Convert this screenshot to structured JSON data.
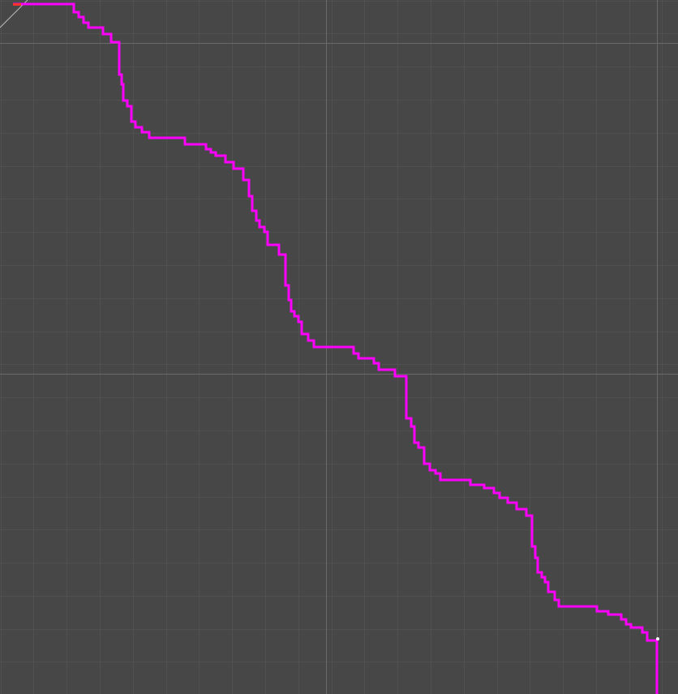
{
  "canvas": {
    "background": "#474747",
    "minor_grid_color": "#505050",
    "major_grid_color": "#6a6a6a"
  },
  "path": {
    "color": "#ff00ff",
    "start_marker_color": "#ff3030",
    "end_marker_color": "#ffffff",
    "shape": "monotone staircase descending from top-left to bottom-right"
  }
}
